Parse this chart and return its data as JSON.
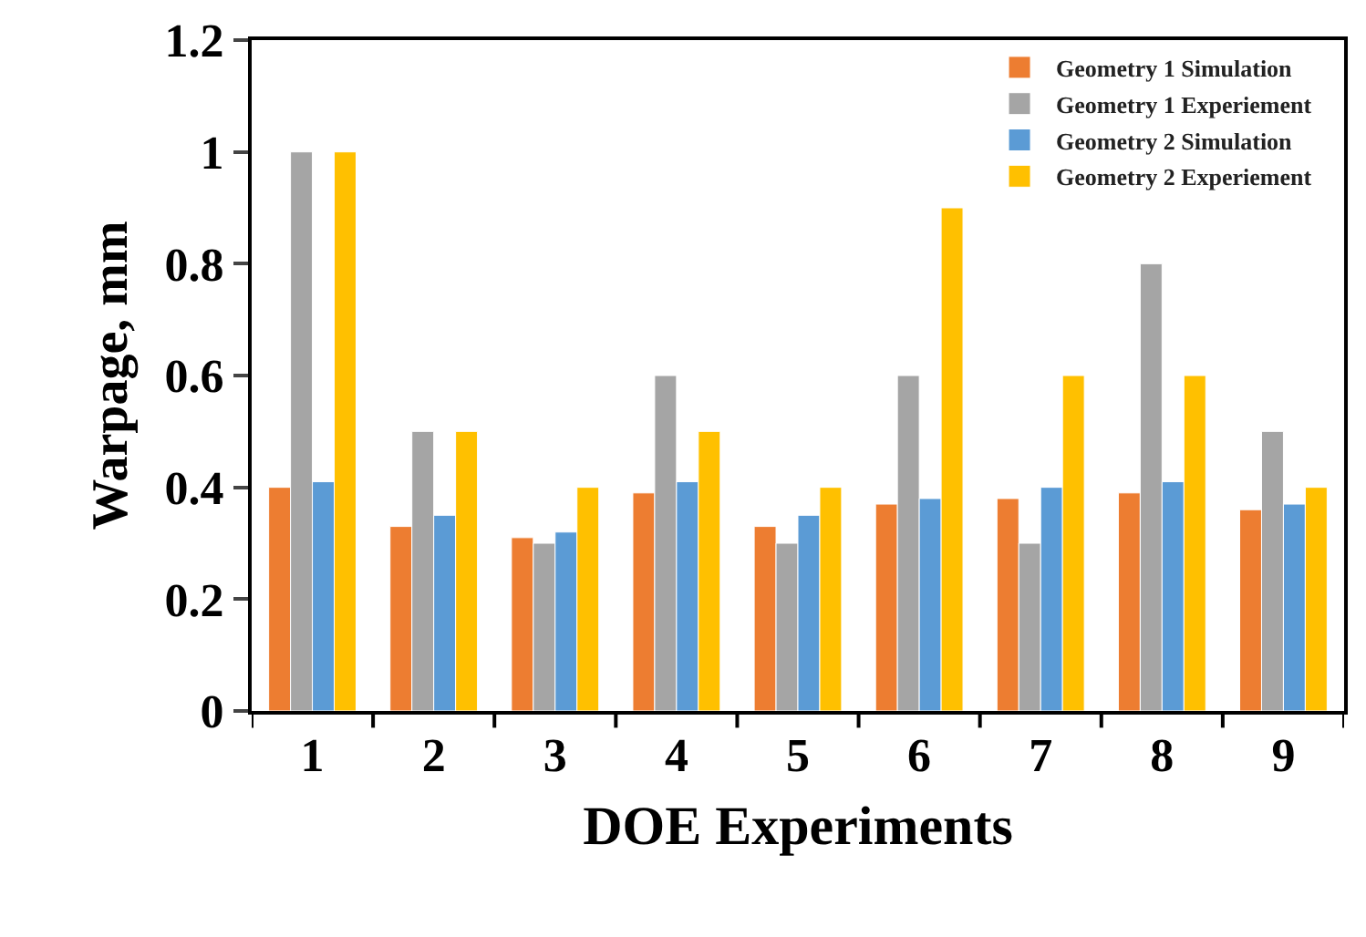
{
  "chart_data": {
    "type": "bar",
    "xlabel": "DOE Experiments",
    "ylabel": "Warpage, mm",
    "categories": [
      "1",
      "2",
      "3",
      "4",
      "5",
      "6",
      "7",
      "8",
      "9"
    ],
    "series": [
      {
        "name": "Geometry 1 Simulation",
        "color": "#ed7d31",
        "values": [
          0.4,
          0.33,
          0.31,
          0.39,
          0.33,
          0.37,
          0.38,
          0.39,
          0.36
        ]
      },
      {
        "name": "Geometry 1 Experiement",
        "color": "#a5a5a5",
        "values": [
          1,
          0.5,
          0.3,
          0.6,
          0.3,
          0.6,
          0.3,
          0.8,
          0.5
        ]
      },
      {
        "name": "Geometry 2 Simulation",
        "color": "#5b9bd5",
        "values": [
          0.41,
          0.35,
          0.32,
          0.41,
          0.35,
          0.38,
          0.4,
          0.41,
          0.37
        ]
      },
      {
        "name": "Geometry 2 Experiement",
        "color": "#ffc000",
        "values": [
          1,
          0.5,
          0.4,
          0.5,
          0.4,
          0.9,
          0.6,
          0.6,
          0.4
        ]
      }
    ],
    "ylim": [
      0,
      1.2
    ],
    "yticks": [
      0,
      0.2,
      0.4,
      0.6,
      0.8,
      1,
      1.2
    ],
    "grid": false,
    "legend": "top right"
  }
}
